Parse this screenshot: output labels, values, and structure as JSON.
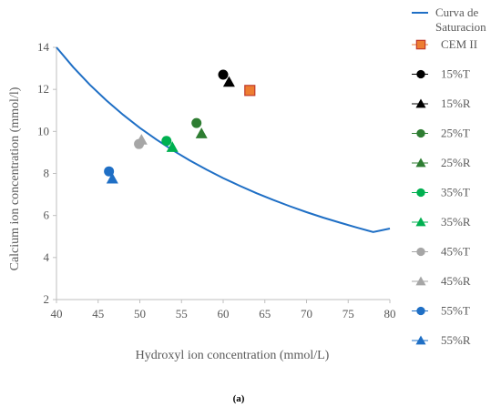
{
  "chart_data": {
    "type": "scatter",
    "xlabel": "Hydroxyl ion concentration (mmol/L)",
    "ylabel": "Calcium ion concentration (mmol/l)",
    "xlim": [
      40,
      80
    ],
    "ylim": [
      2,
      14
    ],
    "x_ticks": [
      40,
      45,
      50,
      55,
      60,
      65,
      70,
      75,
      80
    ],
    "y_ticks": [
      2,
      4,
      6,
      8,
      10,
      12,
      14
    ],
    "grid": false,
    "legend_position": "right",
    "caption": "(a)",
    "curve": {
      "name_lines": [
        "Curva de",
        "Saturacion"
      ],
      "color": "#1f6fc5",
      "x": [
        40,
        42,
        44,
        46,
        48,
        50,
        52,
        54,
        56,
        58,
        60,
        62,
        64,
        66,
        68,
        70,
        72,
        74,
        76,
        78,
        80
      ],
      "y": [
        14.0,
        13.06,
        12.22,
        11.47,
        10.79,
        10.17,
        9.61,
        9.09,
        8.62,
        8.18,
        7.78,
        7.41,
        7.06,
        6.74,
        6.44,
        6.16,
        5.9,
        5.66,
        5.43,
        5.21,
        5.38
      ]
    },
    "series": [
      {
        "name": "CEM II",
        "marker": "square",
        "color": "#ed7d31",
        "stroke": "#c0392b",
        "x": 63.2,
        "y": 11.95
      },
      {
        "name": "15%T",
        "marker": "circle",
        "color": "#000000",
        "x": 60.0,
        "y": 12.7
      },
      {
        "name": "15%R",
        "marker": "triangle",
        "color": "#000000",
        "x": 60.7,
        "y": 12.35
      },
      {
        "name": "25%T",
        "marker": "circle",
        "color": "#2e7d32",
        "x": 56.8,
        "y": 10.4
      },
      {
        "name": "25%R",
        "marker": "triangle",
        "color": "#2e7d32",
        "x": 57.4,
        "y": 9.9
      },
      {
        "name": "35%T",
        "marker": "circle",
        "color": "#00b050",
        "x": 53.2,
        "y": 9.55
      },
      {
        "name": "35%R",
        "marker": "triangle",
        "color": "#00b050",
        "x": 53.9,
        "y": 9.25
      },
      {
        "name": "45%T",
        "marker": "circle",
        "color": "#a6a6a6",
        "x": 49.9,
        "y": 9.4
      },
      {
        "name": "45%R",
        "marker": "triangle",
        "color": "#a6a6a6",
        "x": 50.2,
        "y": 9.6
      },
      {
        "name": "55%T",
        "marker": "circle",
        "color": "#1f6fc5",
        "x": 46.3,
        "y": 8.1
      },
      {
        "name": "55%R",
        "marker": "triangle",
        "color": "#1f6fc5",
        "x": 46.7,
        "y": 7.75
      }
    ]
  }
}
